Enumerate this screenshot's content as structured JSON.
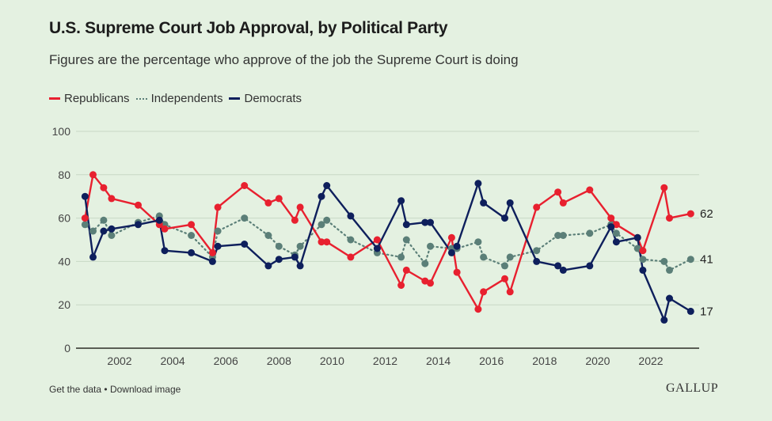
{
  "header": {
    "title": "U.S. Supreme Court Job Approval, by Political Party",
    "subtitle": "Figures are the percentage who approve of the job the Supreme Court is doing"
  },
  "legend": [
    {
      "label": "Republicans",
      "color": "#e8202f",
      "style": "solid"
    },
    {
      "label": "Independents",
      "color": "#5b7f78",
      "style": "dotted"
    },
    {
      "label": "Democrats",
      "color": "#0e1f5c",
      "style": "solid"
    }
  ],
  "footer": {
    "get_data": "Get the data",
    "separator": "•",
    "download": "Download image",
    "brand": "GALLUP"
  },
  "chart_data": {
    "type": "line",
    "title": "U.S. Supreme Court Job Approval, by Political Party",
    "subtitle": "Figures are the percentage who approve of the job the Supreme Court is doing",
    "xlabel": "",
    "ylabel": "",
    "xlim": [
      2000.4,
      2023.9
    ],
    "ylim": [
      0,
      100
    ],
    "yticks": [
      0,
      20,
      40,
      60,
      80,
      100
    ],
    "xticks": [
      2002,
      2004,
      2006,
      2008,
      2010,
      2012,
      2014,
      2016,
      2018,
      2020,
      2022
    ],
    "grid": true,
    "legend_position": "top-left",
    "end_labels": [
      "62",
      "41",
      "17"
    ],
    "series": [
      {
        "name": "Republicans",
        "color": "#e8202f",
        "points": [
          [
            2000.7,
            60
          ],
          [
            2001.0,
            80
          ],
          [
            2001.4,
            74
          ],
          [
            2001.7,
            69
          ],
          [
            2002.7,
            66
          ],
          [
            2003.5,
            57
          ],
          [
            2003.7,
            55
          ],
          [
            2004.7,
            57
          ],
          [
            2005.5,
            44
          ],
          [
            2005.7,
            65
          ],
          [
            2006.7,
            75
          ],
          [
            2007.6,
            67
          ],
          [
            2008.0,
            69
          ],
          [
            2008.6,
            59
          ],
          [
            2008.8,
            65
          ],
          [
            2009.6,
            49
          ],
          [
            2009.8,
            49
          ],
          [
            2010.7,
            42
          ],
          [
            2011.7,
            50
          ],
          [
            2012.6,
            29
          ],
          [
            2012.8,
            36
          ],
          [
            2013.5,
            31
          ],
          [
            2013.7,
            30
          ],
          [
            2014.5,
            51
          ],
          [
            2014.7,
            35
          ],
          [
            2015.5,
            18
          ],
          [
            2015.7,
            26
          ],
          [
            2016.5,
            32
          ],
          [
            2016.7,
            26
          ],
          [
            2017.7,
            65
          ],
          [
            2018.5,
            72
          ],
          [
            2018.7,
            67
          ],
          [
            2019.7,
            73
          ],
          [
            2020.5,
            60
          ],
          [
            2020.7,
            57
          ],
          [
            2021.5,
            51
          ],
          [
            2021.7,
            45
          ],
          [
            2022.5,
            74
          ],
          [
            2022.7,
            60
          ],
          [
            2023.5,
            62
          ]
        ]
      },
      {
        "name": "Independents",
        "color": "#5b7f78",
        "points": [
          [
            2000.7,
            57
          ],
          [
            2001.0,
            54
          ],
          [
            2001.4,
            59
          ],
          [
            2001.7,
            52
          ],
          [
            2002.7,
            58
          ],
          [
            2003.5,
            61
          ],
          [
            2003.7,
            57
          ],
          [
            2004.7,
            52
          ],
          [
            2005.5,
            42
          ],
          [
            2005.7,
            54
          ],
          [
            2006.7,
            60
          ],
          [
            2007.6,
            52
          ],
          [
            2008.0,
            47
          ],
          [
            2008.6,
            43
          ],
          [
            2008.8,
            47
          ],
          [
            2009.6,
            57
          ],
          [
            2009.8,
            59
          ],
          [
            2010.7,
            50
          ],
          [
            2011.7,
            44
          ],
          [
            2012.6,
            42
          ],
          [
            2012.8,
            50
          ],
          [
            2013.5,
            39
          ],
          [
            2013.7,
            47
          ],
          [
            2014.5,
            46
          ],
          [
            2014.7,
            46
          ],
          [
            2015.5,
            49
          ],
          [
            2015.7,
            42
          ],
          [
            2016.5,
            38
          ],
          [
            2016.7,
            42
          ],
          [
            2017.7,
            45
          ],
          [
            2018.5,
            52
          ],
          [
            2018.7,
            52
          ],
          [
            2019.7,
            53
          ],
          [
            2020.5,
            57
          ],
          [
            2020.7,
            53
          ],
          [
            2021.5,
            46
          ],
          [
            2021.7,
            41
          ],
          [
            2022.5,
            40
          ],
          [
            2022.7,
            36
          ],
          [
            2023.5,
            41
          ]
        ]
      },
      {
        "name": "Democrats",
        "color": "#0e1f5c",
        "points": [
          [
            2000.7,
            70
          ],
          [
            2001.0,
            42
          ],
          [
            2001.4,
            54
          ],
          [
            2001.7,
            55
          ],
          [
            2002.7,
            57
          ],
          [
            2003.5,
            59
          ],
          [
            2003.7,
            45
          ],
          [
            2004.7,
            44
          ],
          [
            2005.5,
            40
          ],
          [
            2005.7,
            47
          ],
          [
            2006.7,
            48
          ],
          [
            2007.6,
            38
          ],
          [
            2008.0,
            41
          ],
          [
            2008.6,
            42
          ],
          [
            2008.8,
            38
          ],
          [
            2009.6,
            70
          ],
          [
            2009.8,
            75
          ],
          [
            2010.7,
            61
          ],
          [
            2011.7,
            46
          ],
          [
            2012.6,
            68
          ],
          [
            2012.8,
            57
          ],
          [
            2013.5,
            58
          ],
          [
            2013.7,
            58
          ],
          [
            2014.5,
            44
          ],
          [
            2014.7,
            47
          ],
          [
            2015.5,
            76
          ],
          [
            2015.7,
            67
          ],
          [
            2016.5,
            60
          ],
          [
            2016.7,
            67
          ],
          [
            2017.7,
            40
          ],
          [
            2018.5,
            38
          ],
          [
            2018.7,
            36
          ],
          [
            2019.7,
            38
          ],
          [
            2020.5,
            56
          ],
          [
            2020.7,
            49
          ],
          [
            2021.5,
            51
          ],
          [
            2021.7,
            36
          ],
          [
            2022.5,
            13
          ],
          [
            2022.7,
            23
          ],
          [
            2023.5,
            17
          ]
        ]
      }
    ]
  }
}
